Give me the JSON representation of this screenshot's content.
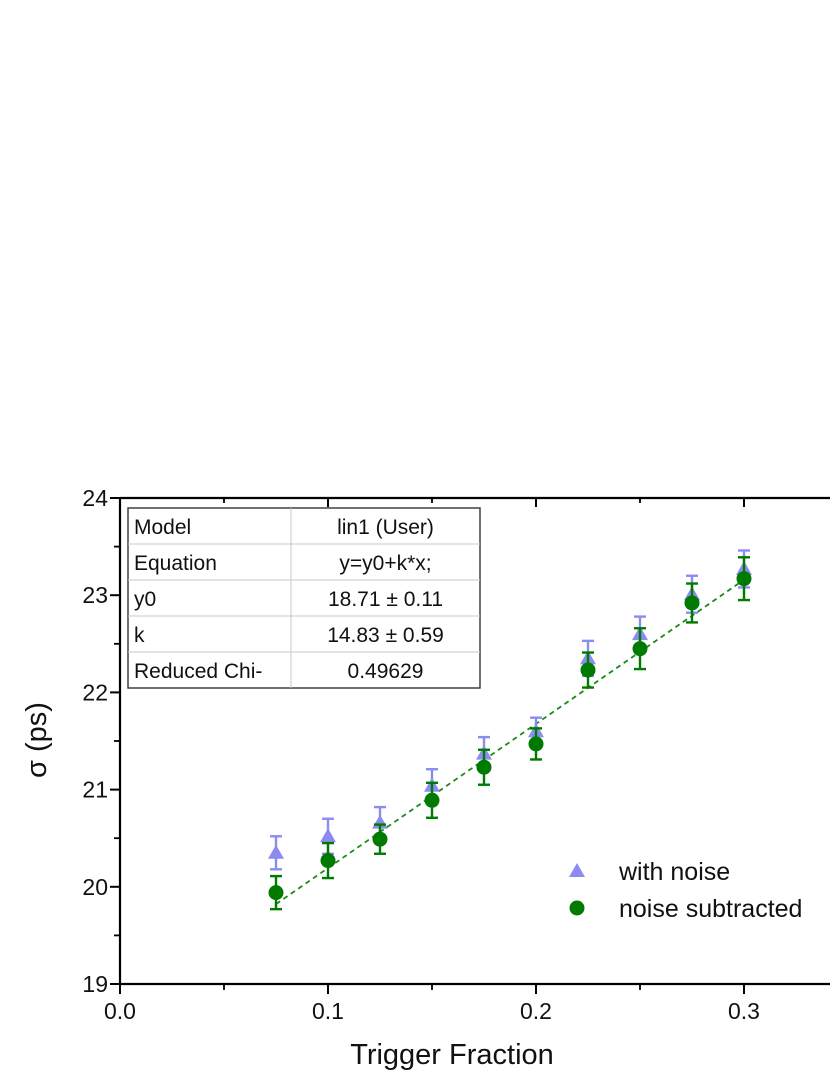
{
  "chart_data": {
    "type": "scatter",
    "xlabel": "Trigger Fraction",
    "ylabel": "σ (ps)",
    "xlim": [
      0.0,
      0.34
    ],
    "ylim": [
      19,
      24
    ],
    "x_ticks": [
      "0.0",
      "0.1",
      "0.2",
      "0.3"
    ],
    "y_ticks": [
      "19",
      "20",
      "21",
      "22",
      "23",
      "24"
    ],
    "x": [
      0.075,
      0.1,
      0.125,
      0.15,
      0.175,
      0.2,
      0.225,
      0.25,
      0.275,
      0.3
    ],
    "series": [
      {
        "name": "with noise",
        "marker": "triangle",
        "color": "#8c8cf0",
        "values": [
          20.35,
          20.52,
          20.66,
          21.04,
          21.37,
          21.6,
          22.35,
          22.6,
          23.01,
          23.27
        ],
        "errors": [
          0.17,
          0.18,
          0.16,
          0.17,
          0.17,
          0.14,
          0.18,
          0.18,
          0.19,
          0.19
        ]
      },
      {
        "name": "noise subtracted",
        "marker": "circle",
        "color": "#007a00",
        "values": [
          19.94,
          20.27,
          20.49,
          20.89,
          21.23,
          21.47,
          22.23,
          22.45,
          22.92,
          23.17
        ],
        "errors": [
          0.17,
          0.18,
          0.15,
          0.18,
          0.18,
          0.16,
          0.18,
          0.21,
          0.2,
          0.22
        ]
      }
    ],
    "fit": {
      "style": "dashed",
      "color": "#1a8a1a",
      "x_range": [
        0.075,
        0.3
      ],
      "y0": 18.71,
      "k": 14.83
    },
    "fit_table": [
      {
        "label": "Model",
        "value": "lin1 (User)"
      },
      {
        "label": "Equation",
        "value": "y=y0+k*x;"
      },
      {
        "label": "y0",
        "value": "18.71 ± 0.11"
      },
      {
        "label": "k",
        "value": "14.83 ± 0.59"
      },
      {
        "label": "Reduced Chi-",
        "value": "0.49629"
      }
    ],
    "legend_position": "bottom-right",
    "grid": false
  }
}
